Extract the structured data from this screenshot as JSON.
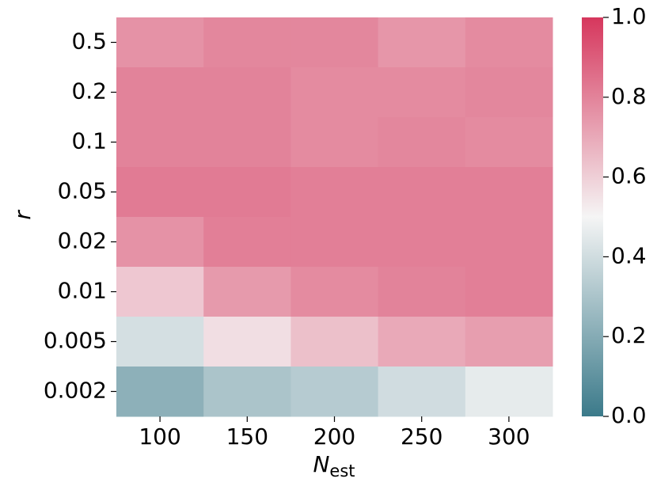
{
  "chart_data": {
    "type": "heatmap",
    "xlabel": {
      "main": "N",
      "subscript": "est"
    },
    "ylabel": "r",
    "x_categories": [
      "100",
      "150",
      "200",
      "250",
      "300"
    ],
    "y_categories": [
      "0.5",
      "0.2",
      "0.1",
      "0.05",
      "0.02",
      "0.01",
      "0.005",
      "0.002"
    ],
    "values": [
      [
        0.76,
        0.79,
        0.79,
        0.75,
        0.78
      ],
      [
        0.8,
        0.8,
        0.78,
        0.78,
        0.79
      ],
      [
        0.8,
        0.8,
        0.78,
        0.79,
        0.78
      ],
      [
        0.82,
        0.82,
        0.81,
        0.81,
        0.81
      ],
      [
        0.76,
        0.81,
        0.81,
        0.81,
        0.81
      ],
      [
        0.62,
        0.74,
        0.78,
        0.8,
        0.81
      ],
      [
        0.41,
        0.56,
        0.64,
        0.7,
        0.73
      ],
      [
        0.22,
        0.3,
        0.33,
        0.4,
        0.46
      ]
    ],
    "colormap": [
      "#3b7a8a",
      "#f5f5f5",
      "#d6375d"
    ],
    "clim": [
      0,
      1
    ],
    "cticks": [
      {
        "value": 0,
        "label": "0.0"
      },
      0.2,
      0.4,
      0.6,
      0.8,
      {
        "value": 1,
        "label": "1.0"
      }
    ]
  }
}
